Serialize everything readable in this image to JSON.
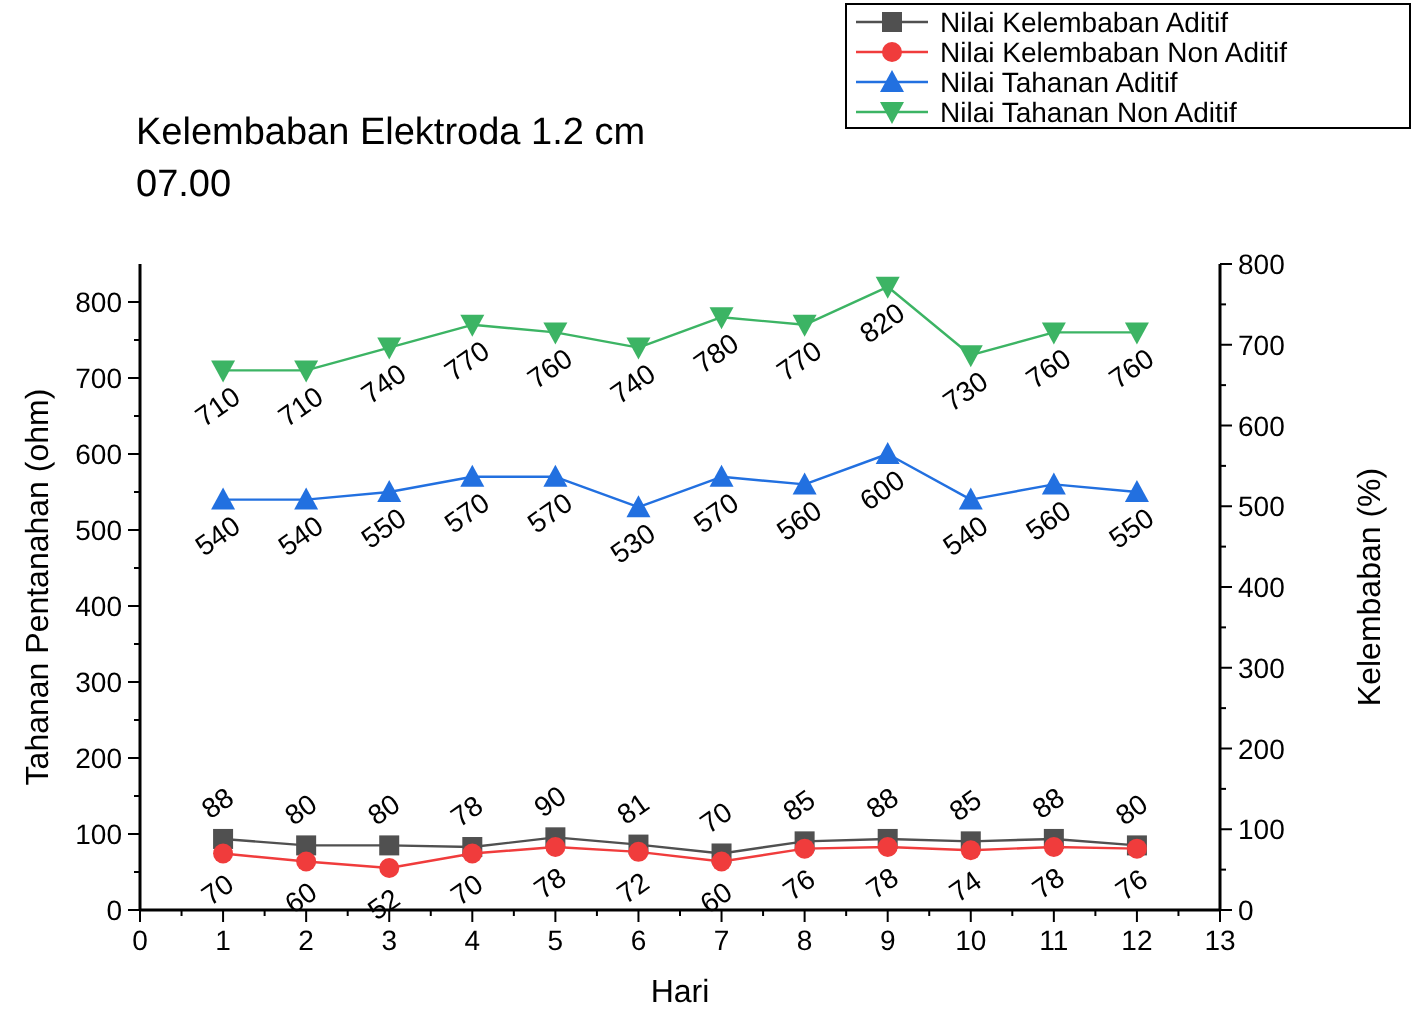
{
  "chart_data": {
    "type": "line",
    "title": "Kelembaban Elektroda 1.2 cm",
    "subtitle": "07.00",
    "xlabel": "Hari",
    "ylabel": "Tahanan Pentanahan (ohm)",
    "y2label": "Kelembaban (%)",
    "x": [
      1,
      2,
      3,
      4,
      5,
      6,
      7,
      8,
      9,
      10,
      11,
      12
    ],
    "xlim": [
      0,
      13
    ],
    "xticks": [
      0,
      {
        "value": 0.5,
        "label": null
      },
      1,
      {
        "value": 1.5,
        "label": null
      },
      2,
      {
        "value": 2.5,
        "label": null
      },
      3,
      {
        "value": 3.5,
        "label": null
      },
      4,
      {
        "value": 4.5,
        "label": null
      },
      5,
      {
        "value": 5.5,
        "label": null
      },
      6,
      {
        "value": 6.5,
        "label": null
      },
      7,
      {
        "value": 7.5,
        "label": null
      },
      8,
      {
        "value": 8.5,
        "label": null
      },
      9,
      {
        "value": 9.5,
        "label": null
      },
      10,
      {
        "value": 10.5,
        "label": null
      },
      11,
      {
        "value": 11.5,
        "label": null
      },
      12,
      {
        "value": 12.5,
        "label": null
      },
      13
    ],
    "ylim": [
      0,
      850
    ],
    "yticks": [
      0,
      {
        "value": 50,
        "label": null
      },
      100,
      {
        "value": 150,
        "label": null
      },
      200,
      {
        "value": 250,
        "label": null
      },
      300,
      {
        "value": 350,
        "label": null
      },
      400,
      {
        "value": 450,
        "label": null
      },
      500,
      {
        "value": 550,
        "label": null
      },
      600,
      {
        "value": 650,
        "label": null
      },
      700,
      {
        "value": 750,
        "label": null
      },
      800
    ],
    "y2lim": [
      0,
      800
    ],
    "y2ticks": [
      0,
      {
        "value": 50,
        "label": null
      },
      100,
      {
        "value": 150,
        "label": null
      },
      200,
      {
        "value": 250,
        "label": null
      },
      300,
      {
        "value": 350,
        "label": null
      },
      400,
      {
        "value": 450,
        "label": null
      },
      500,
      {
        "value": 550,
        "label": null
      },
      600,
      {
        "value": 650,
        "label": null
      },
      700,
      {
        "value": 750,
        "label": null
      },
      800
    ],
    "series": [
      {
        "name": "Nilai Kelembaban Aditif",
        "color": "#505050",
        "marker": "square",
        "axis": "y2",
        "values": [
          88,
          80,
          80,
          78,
          90,
          81,
          70,
          85,
          88,
          85,
          88,
          80
        ]
      },
      {
        "name": "Nilai Kelembaban Non Aditif",
        "color": "#f03c3c",
        "marker": "circle",
        "axis": "y2",
        "values": [
          70,
          60,
          52,
          70,
          78,
          72,
          60,
          76,
          78,
          74,
          78,
          76
        ]
      },
      {
        "name": "Nilai Tahanan Aditif",
        "color": "#2270e0",
        "marker": "triangle",
        "values": [
          540,
          540,
          550,
          570,
          570,
          530,
          570,
          560,
          600,
          540,
          560,
          550
        ]
      },
      {
        "name": "Nilai Tahanan Non Aditif",
        "color": "#3cb464",
        "marker": "triangle-down",
        "values": [
          710,
          710,
          740,
          770,
          760,
          740,
          780,
          770,
          820,
          730,
          760,
          760
        ]
      }
    ],
    "data_labels": true,
    "legend": "top right",
    "grid": false,
    "line_style": "solid"
  }
}
